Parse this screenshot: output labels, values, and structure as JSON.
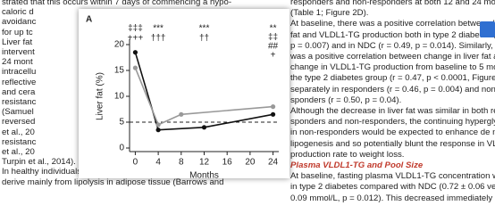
{
  "left_column": [
    "strated that this occurs within 7 days of commencing a hypo-",
    "caloric d",
    "avoidanc",
    "for up tc",
    "Liver fat",
    "intervent",
    "24 mont",
    "intracellu",
    "reflective",
    "and cera",
    "resistanc",
    "(Samuel",
    "reversed",
    "et al., 20",
    "resistanc",
    "et al., 20",
    "Turpin et al., 2014).",
    "In healthy individuals, the fatty acids in hepatic triglyceride",
    "derive mainly from lipolysis in adipose tissue (Barrows and"
  ],
  "right_column": [
    "responders and non-responders at both 12 and 24 months",
    "(Table 1; Figure 2D).",
    "At baseline, there was a positive correlation between l",
    "fat and VLDL1-TG production both in type 2 diabetes (r =",
    "p = 0.007) and in NDC (r = 0.49, p = 0.014). Similarly, there",
    "was a positive correlation between change in liver fat and",
    "change in VLDL1-TG production from baseline to 5 months in",
    "the type 2 diabetes group (r = 0.47, p < 0.0001, Figure S3) and",
    "separately in responders (r = 0.46, p = 0.004) and non-re-",
    "sponders (r = 0.50, p = 0.04).",
    "Although the decrease in liver fat was similar in both re-",
    "sponders and non-responders, the continuing hyperglycemia",
    "in non-responders would be expected to enhance de novo",
    "lipogenesis and so potentially blunt the response in VLDL1-TG",
    "production rate to weight loss."
  ],
  "section_heading": "Plasma VLDL1-TG and Pool Size",
  "section_text": [
    "At baseline, fasting plasma VLDL1-TG concentration was higher",
    "in type 2 diabetes compared with NDC (0.72 ± 0.06 versus 0.48 ±",
    "0.09 mmol/L, p = 0.012). This decreased immediately after"
  ],
  "chart_data": {
    "type": "line",
    "panel_label": "A",
    "y_label": "Liver fat (%)",
    "x_label": "Months",
    "xlim": [
      -1,
      25
    ],
    "xticks": [
      0,
      4,
      8,
      12,
      16,
      20,
      24
    ],
    "ylim": [
      0,
      20
    ],
    "yticks": [
      0,
      5,
      10,
      15,
      20
    ],
    "reference_line": 5,
    "series": [
      {
        "color": "#111111",
        "x": [
          0,
          4,
          12,
          24
        ],
        "values": [
          18.5,
          3.5,
          4,
          6.5
        ]
      },
      {
        "color": "#999999",
        "x": [
          0,
          4,
          8,
          24
        ],
        "values": [
          15.5,
          4.5,
          6.5,
          8
        ]
      }
    ],
    "annotations": [
      "‡‡‡",
      "+++",
      "***",
      "†††",
      "***",
      "††",
      "**",
      "‡‡",
      "##",
      "+"
    ]
  }
}
